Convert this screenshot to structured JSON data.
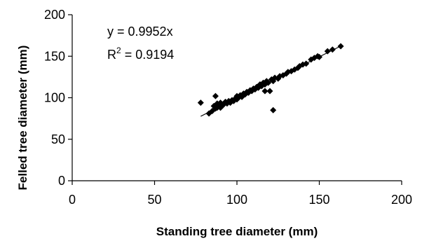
{
  "chart_data": {
    "type": "scatter",
    "xlabel": "Standing tree diameter (mm)",
    "ylabel": "Felled tree diameter (mm)",
    "xlim": [
      0,
      200
    ],
    "ylim": [
      0,
      200
    ],
    "x_ticks": [
      0,
      50,
      100,
      150,
      200
    ],
    "y_ticks": [
      0,
      50,
      100,
      150,
      200
    ],
    "grid": false,
    "legend": "none",
    "annotation": {
      "equation": "y = 0.9952x",
      "r_squared_prefix": "R",
      "r_squared_exponent": "2",
      "r_squared_value": " = 0.9194"
    },
    "trendline": {
      "slope": 0.9952,
      "intercept": 0,
      "x_range": [
        78,
        163
      ]
    },
    "marker_color": "#000000",
    "points": [
      [
        78,
        94
      ],
      [
        83,
        81
      ],
      [
        85,
        84
      ],
      [
        86,
        90
      ],
      [
        87,
        87
      ],
      [
        87,
        102
      ],
      [
        88,
        88
      ],
      [
        88,
        93
      ],
      [
        89,
        91
      ],
      [
        90,
        88
      ],
      [
        90,
        94
      ],
      [
        91,
        90
      ],
      [
        92,
        92
      ],
      [
        93,
        95
      ],
      [
        94,
        93
      ],
      [
        95,
        96
      ],
      [
        96,
        94
      ],
      [
        97,
        97
      ],
      [
        98,
        96
      ],
      [
        99,
        99
      ],
      [
        100,
        98
      ],
      [
        100,
        102
      ],
      [
        101,
        100
      ],
      [
        102,
        103
      ],
      [
        103,
        101
      ],
      [
        104,
        105
      ],
      [
        105,
        104
      ],
      [
        106,
        107
      ],
      [
        107,
        106
      ],
      [
        108,
        109
      ],
      [
        109,
        108
      ],
      [
        110,
        111
      ],
      [
        111,
        110
      ],
      [
        112,
        113
      ],
      [
        113,
        112
      ],
      [
        114,
        116
      ],
      [
        115,
        114
      ],
      [
        116,
        118
      ],
      [
        117,
        108
      ],
      [
        117,
        116
      ],
      [
        118,
        120
      ],
      [
        119,
        118
      ],
      [
        120,
        108
      ],
      [
        121,
        122
      ],
      [
        122,
        85
      ],
      [
        122,
        120
      ],
      [
        123,
        124
      ],
      [
        125,
        123
      ],
      [
        126,
        126
      ],
      [
        128,
        127
      ],
      [
        130,
        129
      ],
      [
        131,
        131
      ],
      [
        133,
        132
      ],
      [
        135,
        134
      ],
      [
        137,
        136
      ],
      [
        138,
        138
      ],
      [
        140,
        140
      ],
      [
        142,
        141
      ],
      [
        145,
        146
      ],
      [
        147,
        148
      ],
      [
        149,
        150
      ],
      [
        150,
        149
      ],
      [
        155,
        156
      ],
      [
        158,
        158
      ],
      [
        163,
        162
      ]
    ]
  }
}
